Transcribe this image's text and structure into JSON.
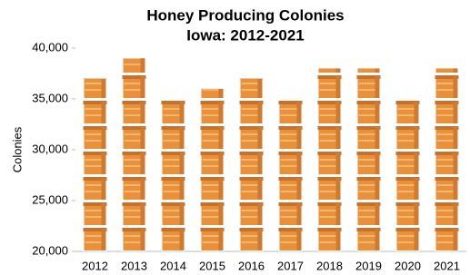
{
  "chart_data": {
    "type": "pictograph_bar",
    "title": "Honey Producing Colonies",
    "subtitle": "Iowa: 2012-2021",
    "y_label": "Colonies",
    "categories": [
      "2012",
      "2013",
      "2014",
      "2015",
      "2016",
      "2017",
      "2018",
      "2019",
      "2020",
      "2021"
    ],
    "values": [
      37000,
      39000,
      35000,
      36000,
      37000,
      35000,
      38000,
      38000,
      35000,
      38000
    ],
    "color": "#e8913a",
    "ylim": [
      20000,
      40000
    ],
    "yticks": [
      {
        "value": 20000,
        "label": "20,000"
      },
      {
        "value": 25000,
        "label": "25,000"
      },
      {
        "value": 30000,
        "label": "30,000"
      },
      {
        "value": 35000,
        "label": "35,000"
      },
      {
        "value": 40000,
        "label": "40,000"
      }
    ]
  }
}
